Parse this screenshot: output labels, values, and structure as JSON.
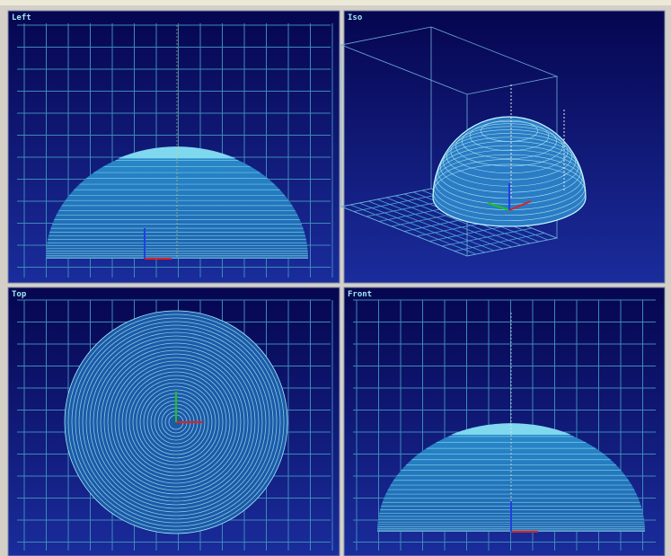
{
  "viewports": [
    {
      "label": "Left"
    },
    {
      "label": "Iso"
    },
    {
      "label": "Top"
    },
    {
      "label": "Front"
    }
  ]
}
